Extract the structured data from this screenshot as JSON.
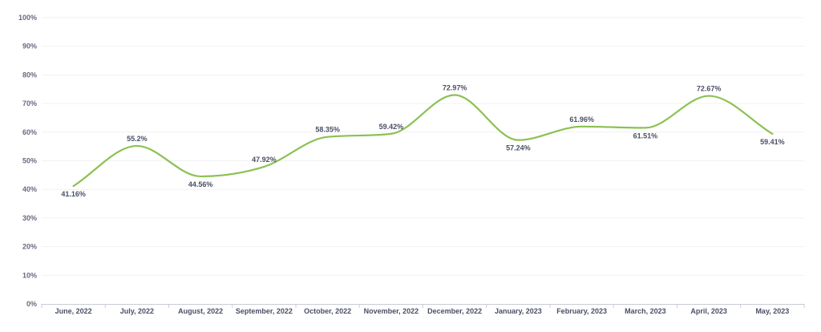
{
  "chart_data": {
    "type": "line",
    "categories": [
      "June, 2022",
      "July, 2022",
      "August, 2022",
      "September, 2022",
      "October, 2022",
      "November, 2022",
      "December, 2022",
      "January, 2023",
      "February, 2023",
      "March, 2023",
      "April, 2023",
      "May, 2023"
    ],
    "series": [
      {
        "values": [
          41.16,
          55.2,
          44.56,
          47.92,
          58.35,
          59.42,
          72.97,
          57.24,
          61.96,
          61.51,
          72.67,
          59.41
        ],
        "labels": [
          "41.16%",
          "55.2%",
          "44.56%",
          "47.92%",
          "58.35%",
          "59.42%",
          "72.97%",
          "57.24%",
          "61.96%",
          "61.51%",
          "72.67%",
          "59.41%"
        ],
        "label_positions": [
          "below",
          "above",
          "below",
          "above",
          "above",
          "above",
          "above",
          "below",
          "above",
          "below",
          "above",
          "below"
        ],
        "color": "#8cc152"
      }
    ],
    "ylim": [
      0,
      100
    ],
    "yticks": [
      0,
      10,
      20,
      30,
      40,
      50,
      60,
      70,
      80,
      90,
      100
    ],
    "ytick_labels": [
      "0%",
      "10%",
      "20%",
      "30%",
      "40%",
      "50%",
      "60%",
      "70%",
      "80%",
      "90%",
      "100%"
    ],
    "grid": true,
    "title": "",
    "xlabel": "",
    "ylabel": ""
  },
  "colors": {
    "line": "#8cc152",
    "grid": "#f1f1f4",
    "axis": "#c9ccd6",
    "tick_text": "#666b80",
    "label_text": "#4b4f66"
  }
}
